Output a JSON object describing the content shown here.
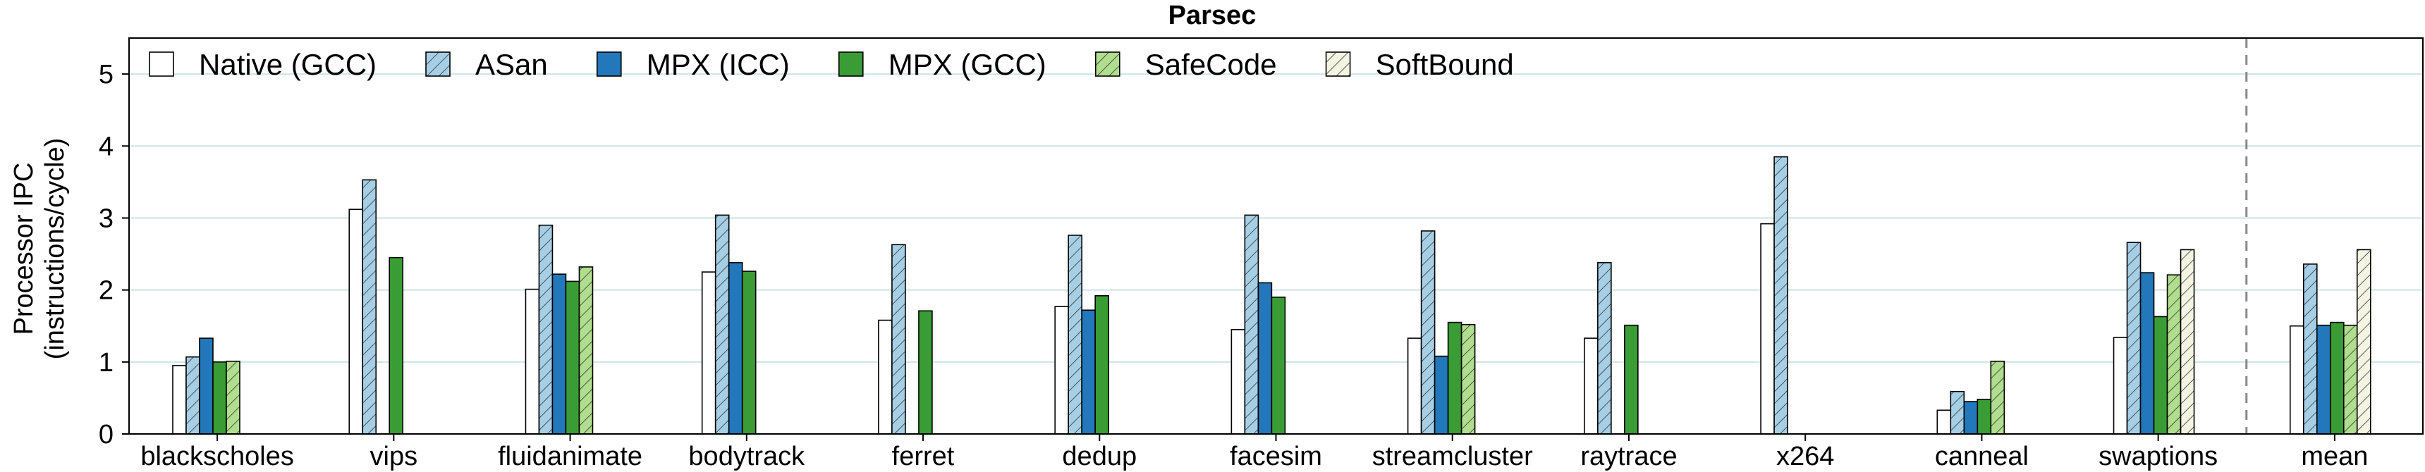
{
  "chart_data": {
    "type": "bar",
    "title": "Parsec",
    "ylabel": "Processor IPC",
    "ylabel_line2": "(instructions/cycle)",
    "xlabel": "",
    "ylim": [
      0,
      5.5
    ],
    "yticks": [
      0,
      1,
      2,
      3,
      4,
      5
    ],
    "grid": "horizontal",
    "legend_position": "top-left",
    "separator_before": "mean",
    "categories": [
      "blackscholes",
      "vips",
      "fluidanimate",
      "bodytrack",
      "ferret",
      "dedup",
      "facesim",
      "streamcluster",
      "raytrace",
      "x264",
      "canneal",
      "swaptions",
      "mean"
    ],
    "series": [
      {
        "name": "Native (GCC)",
        "pattern": "solid",
        "color": "#ffffff",
        "values": [
          0.95,
          3.12,
          2.01,
          2.25,
          1.58,
          1.77,
          1.45,
          1.33,
          1.33,
          2.92,
          0.33,
          1.34,
          1.5
        ]
      },
      {
        "name": "ASan",
        "pattern": "hatch",
        "color": "#a6cfe6",
        "values": [
          1.07,
          3.53,
          2.9,
          3.04,
          2.63,
          2.76,
          3.04,
          2.82,
          2.38,
          3.85,
          0.59,
          2.66,
          2.36
        ]
      },
      {
        "name": "MPX (ICC)",
        "pattern": "solid",
        "color": "#2377bb",
        "values": [
          1.33,
          null,
          2.22,
          2.38,
          null,
          1.72,
          2.1,
          1.08,
          null,
          null,
          0.45,
          2.24,
          1.51
        ]
      },
      {
        "name": "MPX (GCC)",
        "pattern": "solid",
        "color": "#3a9c34",
        "values": [
          1.0,
          2.45,
          2.12,
          2.26,
          1.71,
          1.92,
          1.9,
          1.55,
          1.51,
          null,
          0.48,
          1.63,
          1.55
        ]
      },
      {
        "name": "SafeCode",
        "pattern": "hatch",
        "color": "#b0de8e",
        "values": [
          1.01,
          null,
          2.32,
          null,
          null,
          null,
          null,
          1.52,
          null,
          null,
          1.01,
          2.21,
          1.51
        ]
      },
      {
        "name": "SoftBound",
        "pattern": "hatch",
        "color": "#f4f4e2",
        "values": [
          null,
          null,
          null,
          null,
          null,
          null,
          null,
          null,
          null,
          null,
          null,
          2.56,
          2.56
        ]
      }
    ]
  }
}
